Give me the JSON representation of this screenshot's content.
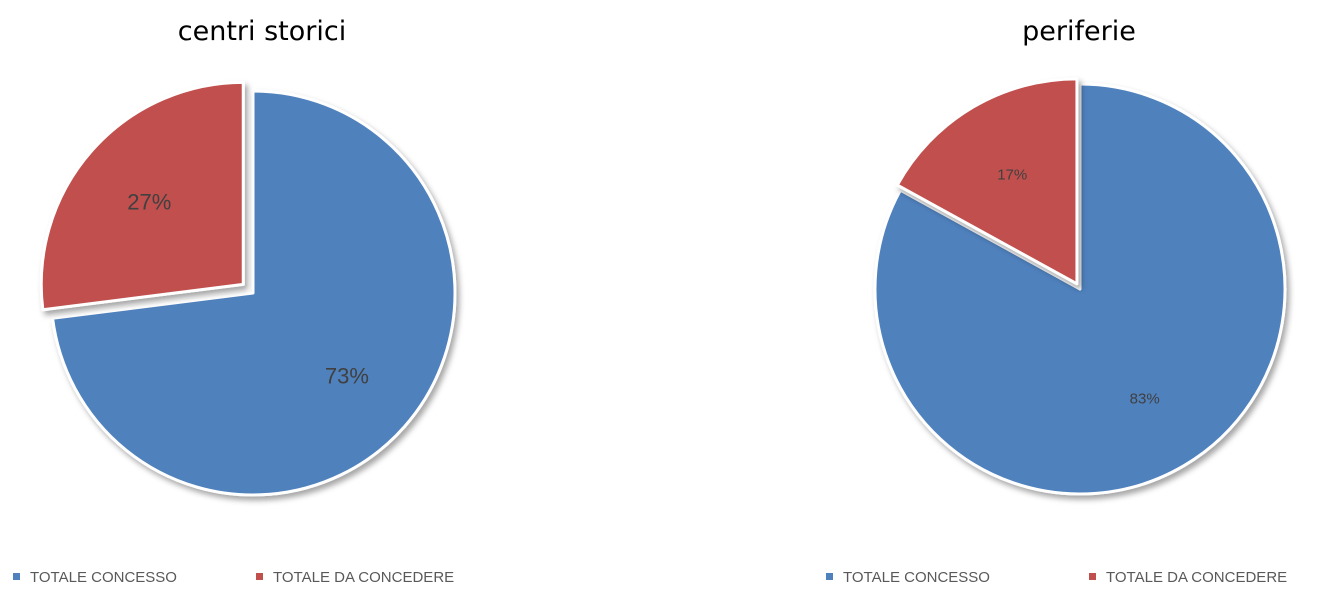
{
  "chart_data": [
    {
      "type": "pie",
      "title": "centri storici",
      "series": [
        {
          "categories": [
            "TOTALE CONCESSO",
            "TOTALE DA CONCEDERE"
          ],
          "values": [
            73,
            27
          ],
          "labels": [
            "73%",
            "27%"
          ],
          "colors": [
            "#4f81bd",
            "#c0504d"
          ]
        }
      ],
      "exploded": "TOTALE DA CONCEDERE",
      "legend": {
        "position": "bottom",
        "entries": [
          "TOTALE CONCESSO",
          "TOTALE DA CONCEDERE"
        ]
      }
    },
    {
      "type": "pie",
      "title": "periferie",
      "series": [
        {
          "categories": [
            "TOTALE CONCESSO",
            "TOTALE DA CONCEDERE"
          ],
          "values": [
            83,
            17
          ],
          "labels": [
            "83%",
            "17%"
          ],
          "colors": [
            "#4f81bd",
            "#c0504d"
          ]
        }
      ],
      "exploded": "TOTALE DA CONCEDERE",
      "legend": {
        "position": "bottom",
        "entries": [
          "TOTALE CONCESSO",
          "TOTALE DA CONCEDERE"
        ]
      }
    }
  ]
}
